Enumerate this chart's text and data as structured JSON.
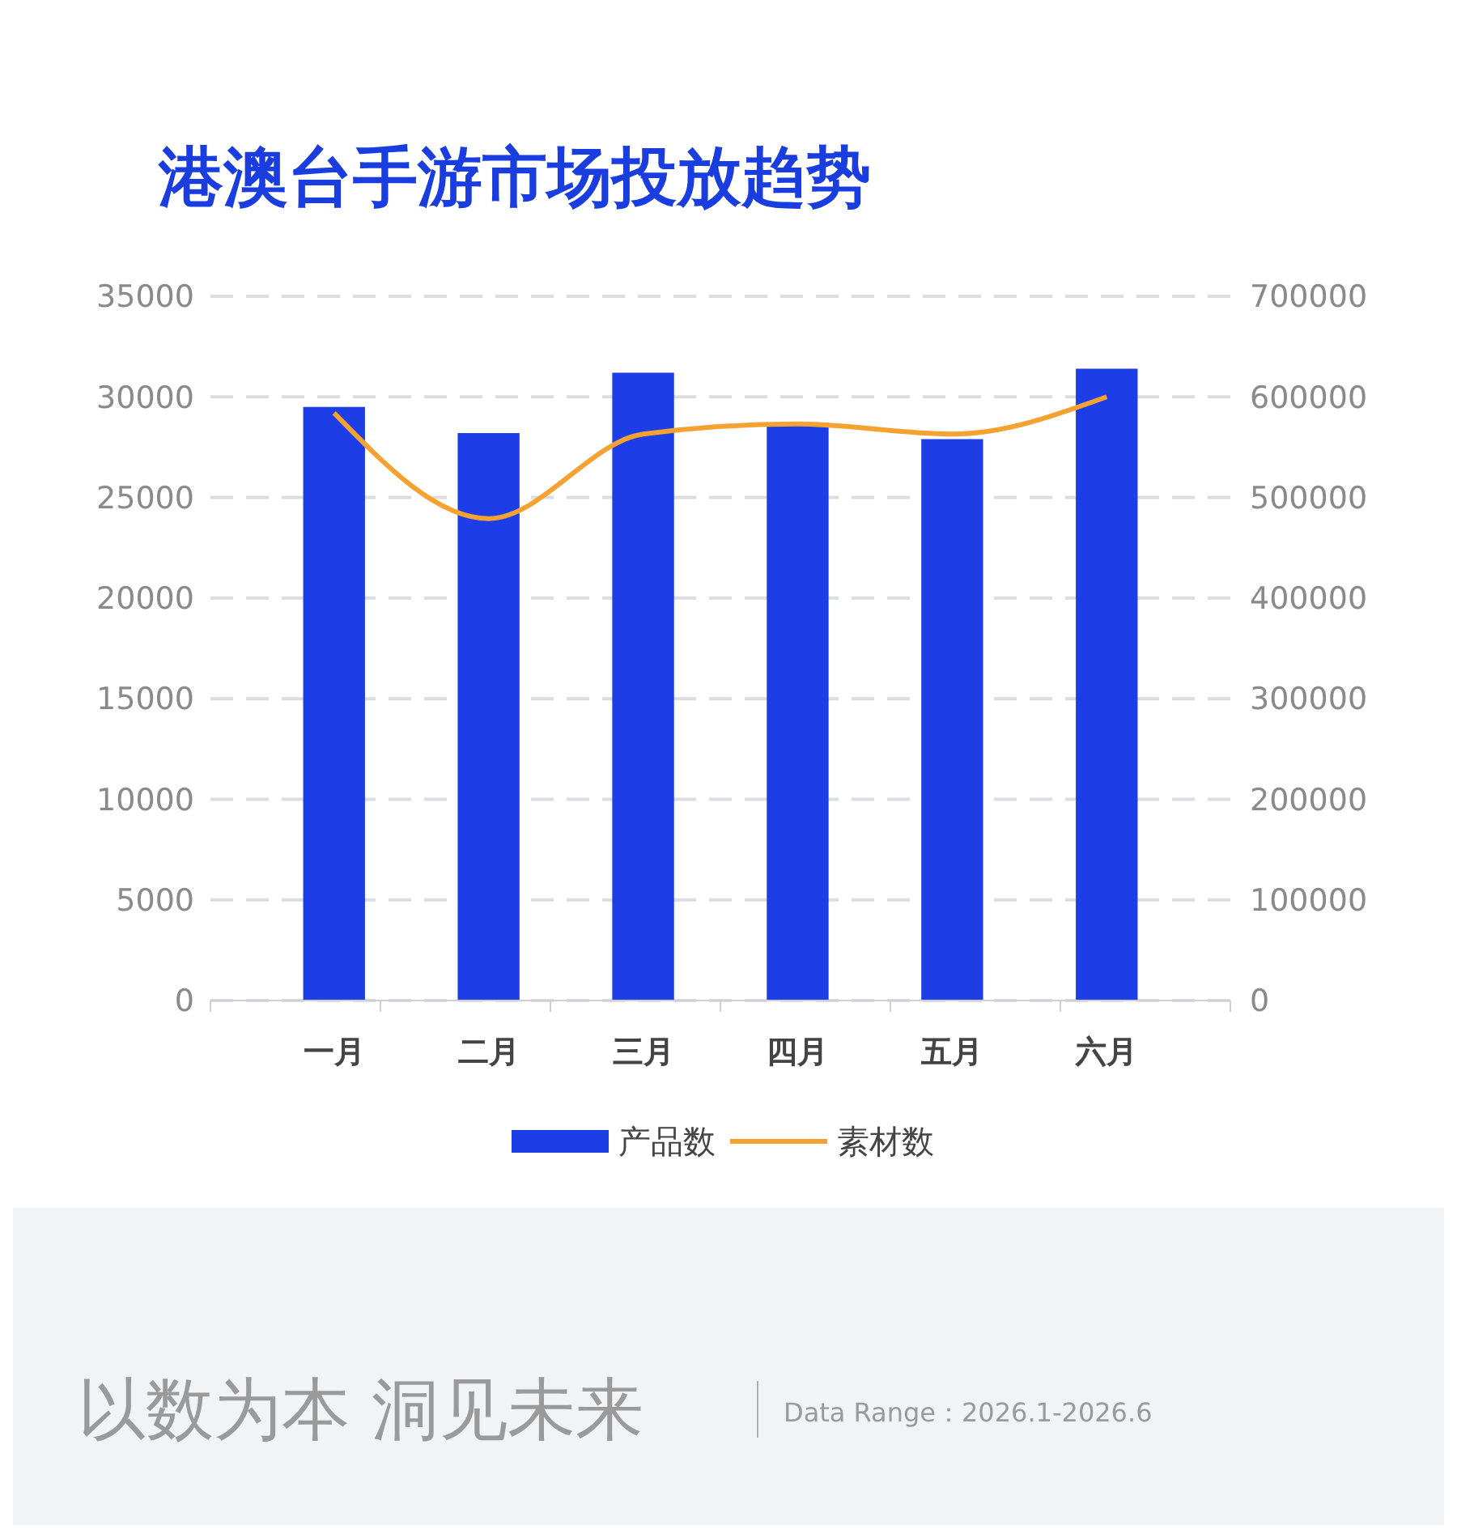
{
  "chart_data": {
    "type": "bar",
    "title": "港澳台手游市场投放趋势",
    "categories": [
      "一月",
      "二月",
      "三月",
      "四月",
      "五月",
      "六月"
    ],
    "series": [
      {
        "name": "产品数",
        "color": "#1d3ee6",
        "values": [
          29500,
          28200,
          31200,
          28700,
          27900,
          31400
        ]
      },
      {
        "name": "素材数",
        "type": "line",
        "axis": "y2",
        "color": "#f5a231",
        "values": [
          584000,
          479000,
          563000,
          573000,
          563000,
          600000
        ]
      }
    ],
    "ylim": [
      0,
      35000
    ],
    "yticks": [
      0,
      5000,
      10000,
      15000,
      20000,
      25000,
      30000,
      35000
    ],
    "y2lim": [
      0,
      700000
    ],
    "y2ticks": [
      0,
      100000,
      200000,
      300000,
      400000,
      500000,
      600000,
      700000
    ],
    "grid": "y",
    "legend": "bottom",
    "annotations": [
      "以数为本 洞见未来",
      "Data Range：2026.1-2026.6"
    ]
  }
}
